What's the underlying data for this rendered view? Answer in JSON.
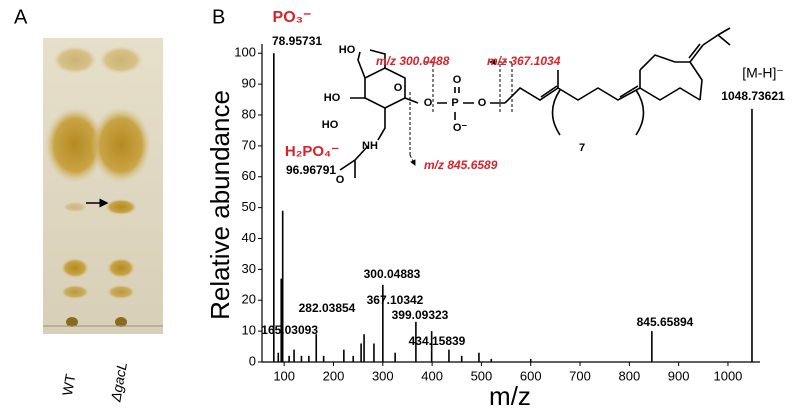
{
  "panels": {
    "a": {
      "label": "A",
      "lanes": [
        "WT",
        "ΔgacL"
      ]
    },
    "b": {
      "label": "B"
    }
  },
  "structure": {
    "atoms": [
      "HO",
      "HO",
      "HO",
      "O",
      "O",
      "P",
      "O",
      "O",
      "O⁻",
      "NH",
      "O",
      "7"
    ],
    "fragments": [
      "m/z 300.0488",
      "m/z 367.1034",
      "m/z 845.6589"
    ]
  },
  "chart_data": {
    "type": "stem",
    "xlabel": "m/z",
    "ylabel": "Relative abundance",
    "x": [
      78.95731,
      88,
      94,
      96.96791,
      110,
      120,
      135,
      150,
      165.03093,
      180,
      221,
      240,
      256,
      262,
      282.03854,
      300.04883,
      325,
      367.10342,
      399.09323,
      434.15839,
      460,
      495,
      520,
      600,
      845.65894,
      1048.73621
    ],
    "values": [
      100,
      3,
      27,
      49,
      2,
      4,
      2,
      2,
      9,
      2,
      4,
      2,
      6,
      9,
      6,
      25,
      3,
      13,
      10,
      4,
      2,
      3,
      1,
      1,
      10,
      82
    ],
    "color": "#000000",
    "annotations": [
      "PO₃⁻",
      "H₂PO₄⁻",
      "[M-H]⁻"
    ],
    "annotation_color": "#d9232a",
    "xlim": [
      55,
      1065
    ],
    "xticks": [
      100,
      200,
      300,
      400,
      500,
      600,
      700,
      800,
      900,
      1000
    ],
    "ylim": [
      0,
      103
    ],
    "yticks": [
      0,
      10,
      20,
      30,
      40,
      50,
      60,
      70,
      80,
      90,
      100
    ]
  }
}
